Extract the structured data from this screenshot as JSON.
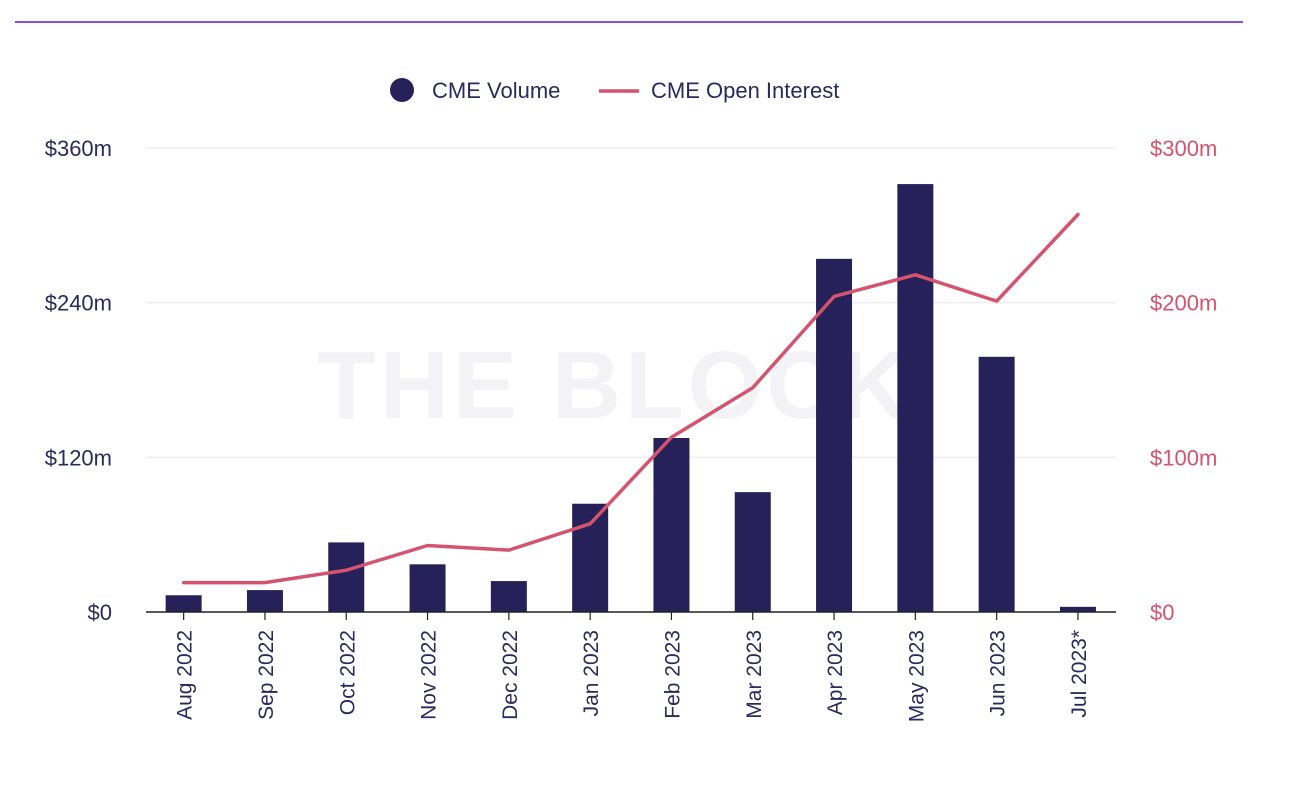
{
  "chart_data": {
    "type": "bar",
    "categories": [
      "Aug 2022",
      "Sep 2022",
      "Oct 2022",
      "Nov 2022",
      "Dec 2022",
      "Jan 2023",
      "Feb 2023",
      "Mar 2023",
      "Apr 2023",
      "May 2023",
      "Jun 2023",
      "Jul 2023*"
    ],
    "series": [
      {
        "name": "CME Volume",
        "type": "bar",
        "axis": "left",
        "color": "#27215a",
        "values": [
          13,
          17,
          54,
          37,
          24,
          84,
          135,
          93,
          274,
          332,
          198,
          4
        ]
      },
      {
        "name": "CME Open Interest",
        "type": "line",
        "axis": "right",
        "color": "#d4536e",
        "values": [
          19,
          19,
          27,
          43,
          40,
          57,
          113,
          145,
          204,
          218,
          201,
          257
        ]
      }
    ],
    "y_left": {
      "range": [
        0,
        360
      ],
      "ticks": [
        0,
        120,
        240,
        360
      ],
      "tick_labels": [
        "$0",
        "$120m",
        "$240m",
        "$360m"
      ]
    },
    "y_right": {
      "range": [
        0,
        300
      ],
      "ticks": [
        0,
        100,
        200,
        300
      ],
      "tick_labels": [
        "$0",
        "$100m",
        "$200m",
        "$300m"
      ]
    },
    "grid": true,
    "legend_position": "top-center",
    "title": "",
    "xlabel": "",
    "ylabel": ""
  },
  "watermark": "THE BLOCK",
  "colors": {
    "accent_rule": "#8a4fd6",
    "bar": "#27215a",
    "line": "#d4536e",
    "grid": "#eeeeef",
    "axis": "#222222"
  }
}
